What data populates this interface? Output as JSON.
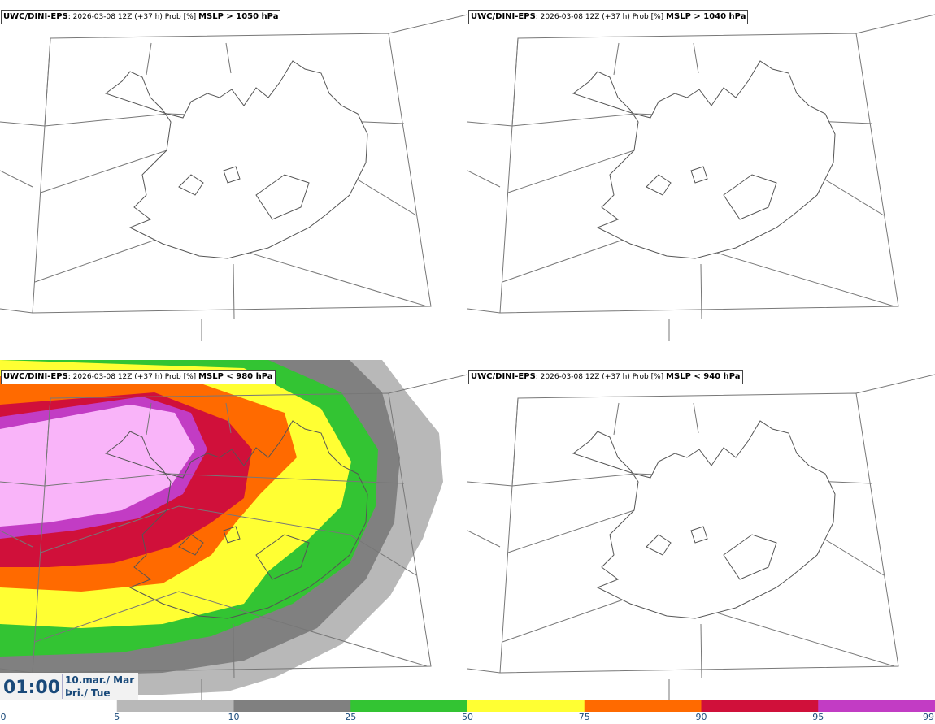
{
  "panels": [
    {
      "model": "UWC/DINI-EPS",
      "meta": ": 2026-03-08 12Z (+37 h) Prob [%]",
      "var": "MSLP > 1050 hPa"
    },
    {
      "model": "UWC/DINI-EPS",
      "meta": ": 2026-03-08 12Z (+37 h) Prob [%]",
      "var": "MSLP > 1040 hPa"
    },
    {
      "model": "UWC/DINI-EPS",
      "meta": ": 2026-03-08 12Z (+37 h) Prob [%]",
      "var": "MSLP < 980 hPa"
    },
    {
      "model": "UWC/DINI-EPS",
      "meta": ": 2026-03-08 12Z (+37 h) Prob [%]",
      "var": "MSLP < 940 hPa"
    }
  ],
  "valid_time": {
    "time": "01:00",
    "date": "10.mar./ Mar",
    "day": "Þri./ Tue"
  },
  "colorbar": {
    "ticks": [
      "0",
      "5",
      "10",
      "25",
      "50",
      "75",
      "90",
      "95",
      "99"
    ],
    "colors": [
      "#ffffff",
      "#b8b8b8",
      "#808080",
      "#33c433",
      "#ffff33",
      "#ff6a00",
      "#d0103a",
      "#c23cc4",
      "#f9b4f9"
    ]
  }
}
